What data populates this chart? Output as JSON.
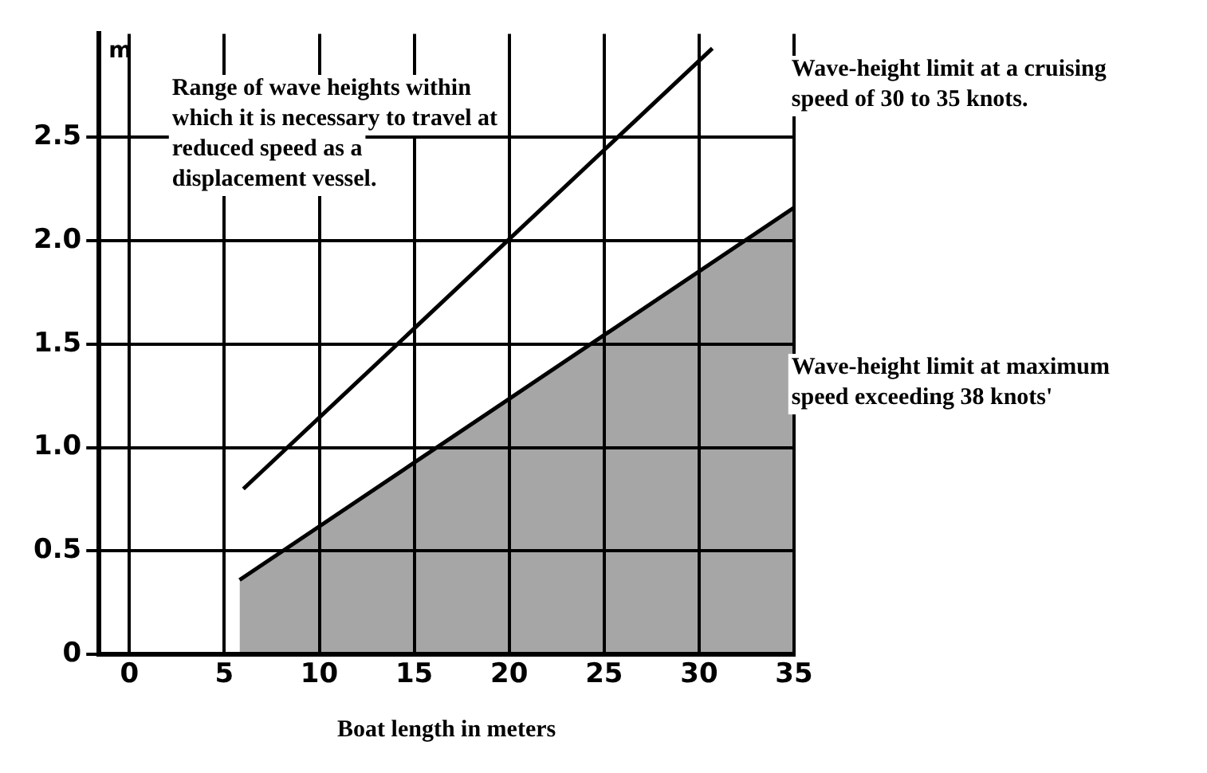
{
  "chart_data": {
    "type": "line",
    "xlabel": "Boat length in meters",
    "ylabel": "m",
    "xlim": [
      -1.6,
      35
    ],
    "ylim": [
      0,
      3
    ],
    "xticks": [
      0,
      5,
      10,
      15,
      20,
      25,
      30,
      35
    ],
    "yticks": [
      0,
      0.5,
      {
        "value": 1,
        "label": "1.0"
      },
      1.5,
      {
        "value": 2,
        "label": "2.0"
      },
      2.5
    ],
    "grid": true,
    "legend": false,
    "marker": "none",
    "series": [
      {
        "color": "#000000",
        "x": [
          6,
          30.7
        ],
        "values": [
          0.8,
          2.93
        ]
      },
      {
        "type": "area",
        "color": "#000000",
        "x": [
          5.8,
          35
        ],
        "values": [
          0.36,
          2.16
        ]
      }
    ],
    "annotations": [
      "Range of wave heights within which it is necessary to travel at reduced speed as a displacement vessel.",
      "Wave-height limit at a cruising speed of 30 to 35 knots.",
      "Wave-height limit at maximum speed exceeding 38 knots'"
    ]
  }
}
